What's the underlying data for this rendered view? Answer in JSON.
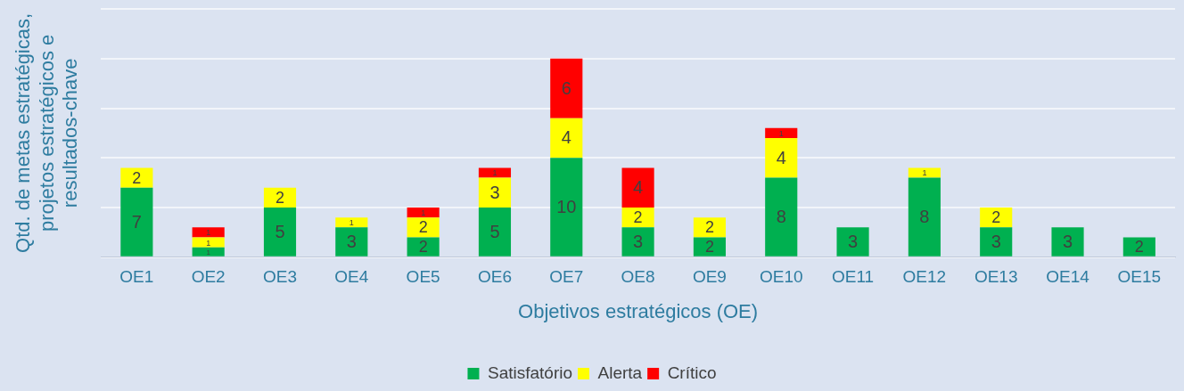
{
  "chart_data": {
    "type": "bar",
    "stacked": true,
    "xlabel": "Objetivos estratégicos (OE)",
    "ylabel": "Qtd. de metas estratégicas, projetos estratégicos e resultados-chave",
    "categories": [
      "OE1",
      "OE2",
      "OE3",
      "OE4",
      "OE5",
      "OE6",
      "OE7",
      "OE8",
      "OE9",
      "OE10",
      "OE11",
      "OE12",
      "OE13",
      "OE14",
      "OE15"
    ],
    "series": [
      {
        "name": "Satisfatório",
        "color": "#00b050",
        "values": [
          7,
          1,
          5,
          3,
          2,
          5,
          10,
          3,
          2,
          8,
          3,
          8,
          3,
          3,
          2
        ]
      },
      {
        "name": "Alerta",
        "color": "#ffff00",
        "values": [
          2,
          1,
          2,
          1,
          2,
          3,
          4,
          2,
          2,
          4,
          null,
          1,
          2,
          null,
          null
        ]
      },
      {
        "name": "Crítico",
        "color": "#ff0000",
        "values": [
          null,
          1,
          null,
          null,
          1,
          1,
          6,
          4,
          null,
          1,
          null,
          null,
          null,
          null,
          null
        ]
      }
    ],
    "ylim": [
      0,
      25
    ],
    "yticks": [
      {
        "value": 0,
        "label": null
      },
      {
        "value": 5,
        "label": null
      },
      {
        "value": 10,
        "label": null
      },
      {
        "value": 15,
        "label": null
      },
      {
        "value": 20,
        "label": null
      },
      {
        "value": 25,
        "label": null
      }
    ],
    "tick_labels": "x",
    "grid": "y",
    "legend": "bottom",
    "data_labels": true
  }
}
